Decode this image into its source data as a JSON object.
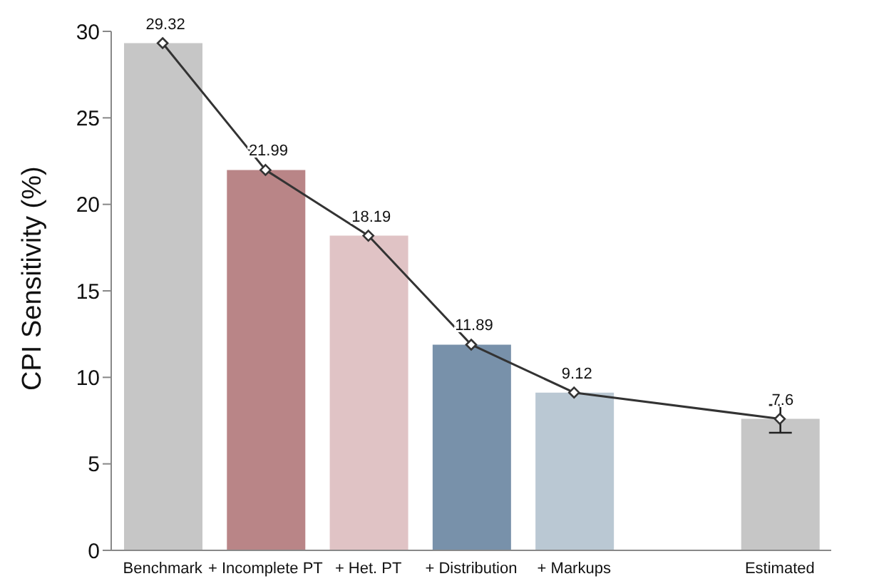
{
  "chart_data": {
    "type": "bar",
    "ylabel": "CPI Sensitivity (%)",
    "categories": [
      "Benchmark",
      "+ Incomplete PT",
      "+ Het. PT",
      "+ Distribution",
      "+ Markups",
      null,
      "Estimated"
    ],
    "series": [
      {
        "colors": [
          "#c6c6c6",
          "#b98587",
          "#e0c3c5",
          "#7891aa",
          "#bac8d3",
          null,
          "#c6c6c6"
        ],
        "values": [
          29.32,
          21.99,
          18.19,
          11.89,
          9.12,
          null,
          7.6
        ],
        "errors": [
          null,
          null,
          null,
          null,
          null,
          null,
          [
            6.8,
            8.4
          ]
        ]
      },
      {
        "type": "line",
        "color": "#333333",
        "values": [
          29.32,
          21.99,
          18.19,
          11.89,
          9.12,
          null,
          7.6
        ],
        "marker": "diamond",
        "value_labels": [
          "29.32",
          "21.99",
          "18.19",
          "11.89",
          "9.12",
          null,
          "7.6"
        ]
      }
    ],
    "ylim": [
      0,
      30
    ],
    "yticks": [
      0,
      5,
      10,
      15,
      20,
      25,
      30
    ],
    "grid": false,
    "legend": false
  }
}
